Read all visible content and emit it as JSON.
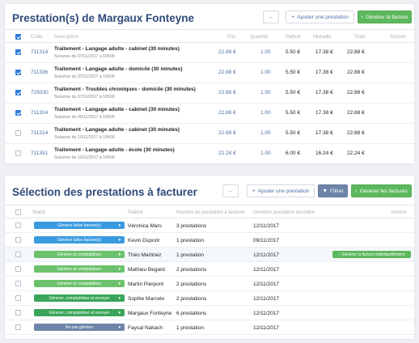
{
  "card1": {
    "title": "Prestation(s) de Margaux Fonteyne",
    "back_label": "←",
    "add_label": "Ajouter une prestation",
    "add_icon": "+",
    "generate_label": "Générer la facture",
    "generate_icon": "‹",
    "headers": [
      "Code",
      "Description",
      "Prix",
      "Quantité",
      "Patient",
      "Mutuelle",
      "Total",
      "Actions"
    ],
    "rows": [
      {
        "checked": true,
        "code": "711314",
        "desc": "Traitement - Langage adulte - cabinet (30 minutes)",
        "sub": "Scéance du 07/11/2017 à 10h00",
        "prix": "22.88 €",
        "qte": "1.00",
        "patient": "5.50 €",
        "mutuelle": "17.38 €",
        "total": "22.88 €"
      },
      {
        "checked": true,
        "code": "711336",
        "desc": "Traitement - Langage adulte - domicile (30 minutes)",
        "sub": "Scéance du 07/11/2017 à 10h00",
        "prix": "22.88 €",
        "qte": "1.00",
        "patient": "5.50 €",
        "mutuelle": "17.38 €",
        "total": "22.88 €"
      },
      {
        "checked": true,
        "code": "729330",
        "desc": "Traitement - Troubles chroniques - domicile (30 minutes)",
        "sub": "Scéance du 07/11/2017 à 10h00",
        "prix": "22.88 €",
        "qte": "1.00",
        "patient": "5.50 €",
        "mutuelle": "17.38 €",
        "total": "22.88 €"
      },
      {
        "checked": true,
        "code": "711314",
        "desc": "Traitement - Langage adulte - cabinet (30 minutes)",
        "sub": "Scéance du 09/11/2017 à 10h00",
        "prix": "22.88 €",
        "qte": "1.00",
        "patient": "5.50 €",
        "mutuelle": "17.38 €",
        "total": "22.88 €"
      },
      {
        "checked": false,
        "code": "711314",
        "desc": "Traitement - Langage adulte - cabinet (30 minutes)",
        "sub": "Scéance du 10/11/2017 à 10h00",
        "prix": "22.88 €",
        "qte": "1.00",
        "patient": "5.50 €",
        "mutuelle": "17.38 €",
        "total": "22.88 €"
      },
      {
        "checked": false,
        "code": "711351",
        "desc": "Traitement - Langage adulte - école (30 minutes)",
        "sub": "Scéance du 12/11/2017 à 10h00",
        "prix": "22.24 €",
        "qte": "1.00",
        "patient": "6.00 €",
        "mutuelle": "16.24 €",
        "total": "22.24 €"
      }
    ]
  },
  "card2": {
    "title": "Sélection des prestations à facturer",
    "back_label": "←",
    "add_label": "Ajouter une prestation",
    "add_icon": "+",
    "filter_label": "Filtrer",
    "filter_icon": "▼",
    "generate_label": "Générer les factures",
    "generate_icon": "‹",
    "headers": [
      "Statut",
      "Patient",
      "Nombre de prestation à facturer",
      "Dernière prestation encodée",
      "Actions"
    ],
    "rows": [
      {
        "status": "Générer la/les facture(s)",
        "pill": "blue",
        "patient": "Véronica Mars",
        "count": "3 prestations",
        "date": "12/11/2017"
      },
      {
        "status": "Générer la/les facture(s)",
        "pill": "blue",
        "patient": "Kevin Dupont",
        "count": "1 prestation",
        "date": "09/11/2017"
      },
      {
        "status": "Générer et comptabiliser",
        "pill": "lgreen",
        "patient": "Théo Martinez",
        "count": "1 prestation",
        "date": "12/11/2017",
        "action": "Générer la facture individuellement",
        "highlight": true
      },
      {
        "status": "Générer et comptabiliser",
        "pill": "lgreen",
        "patient": "Mathieu Begard",
        "count": "2 prestations",
        "date": "12/11/2017"
      },
      {
        "status": "Générer et comptabiliser",
        "pill": "lgreen",
        "patient": "Martin Pierpont",
        "count": "2 prestations",
        "date": "12/11/2017"
      },
      {
        "status": "Générer, comptabiliser et envoyer",
        "pill": "dgreen",
        "patient": "Sophie Marcelo",
        "count": "2 prestations",
        "date": "12/11/2017"
      },
      {
        "status": "Générer, comptabiliser et envoyer",
        "pill": "dgreen",
        "patient": "Margaux Fonteyne",
        "count": "6 prestations",
        "date": "12/11/2017"
      },
      {
        "status": "Ne pas générer",
        "pill": "slate",
        "patient": "Faycal Nakach",
        "count": "1 prestation",
        "date": "12/11/2017"
      }
    ],
    "dropdown_icon": "▼"
  },
  "colors": {
    "accent": "#2e4a7a",
    "green": "#5cb85c",
    "blue": "#3a9ae0",
    "check": "#2e7bd6"
  }
}
